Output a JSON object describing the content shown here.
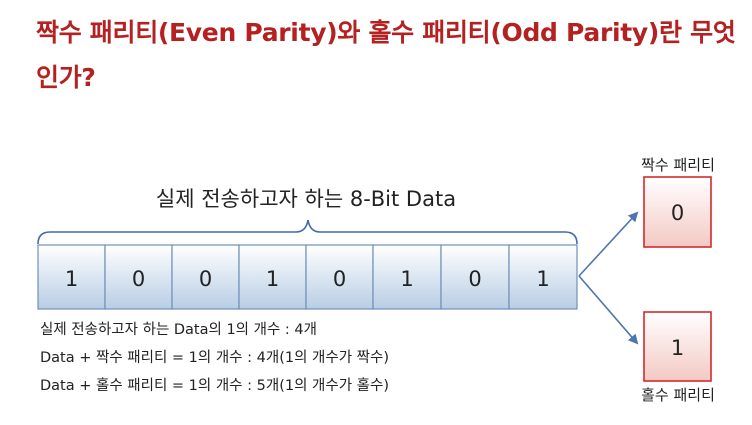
{
  "title": "짝수 패리티(Even Parity)와 홀수 패리티(Odd Parity)란 무엇인가?",
  "data_label": "실제 전송하고자 하는 8-Bit Data",
  "bits": [
    "1",
    "0",
    "0",
    "1",
    "0",
    "1",
    "0",
    "1"
  ],
  "even_parity": {
    "label": "짝수 패리티",
    "value": "0"
  },
  "odd_parity": {
    "label": "홀수 패리티",
    "value": "1"
  },
  "notes": [
    "실제 전송하고자 하는 Data의 1의 개수 : 4개",
    "Data + 짝수 패리티 = 1의 개수 : 4개(1의 개수가 짝수)",
    "Data + 홀수 패리티 = 1의 개수 : 5개(1의 개수가 홀수)"
  ],
  "colors": {
    "title": "#b52020",
    "bit_fill_top": "#ffffff",
    "bit_fill_bottom": "#b8cde4",
    "bit_border": "#6f8fb8",
    "parity_border": "#d42a2a",
    "parity_fill_top": "#ffffff",
    "parity_fill_bottom": "#f3c9c4",
    "arrow": "#4f74b0"
  }
}
